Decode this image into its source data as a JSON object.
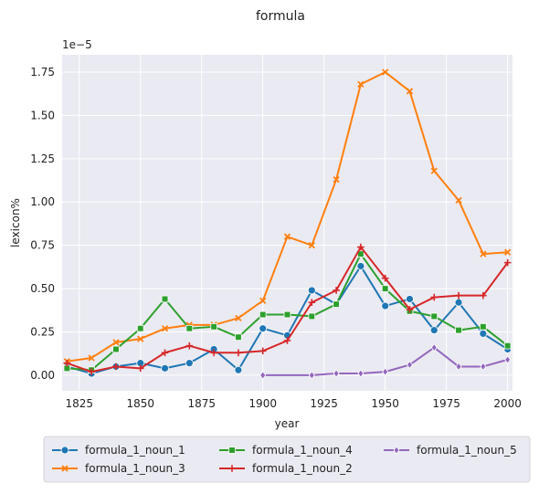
{
  "chart_data": {
    "type": "line",
    "title": "formula",
    "xlabel": "year",
    "ylabel": "lexicon%",
    "y_scale_label": "1e−5",
    "xlim": [
      1818,
      2002
    ],
    "ylim": [
      -0.09,
      1.85
    ],
    "y_multiplier": 1e-05,
    "x_ticks": [
      1825,
      1850,
      1875,
      1900,
      1925,
      1950,
      1975,
      2000
    ],
    "y_ticks": [
      0.0,
      0.25,
      0.5,
      0.75,
      1.0,
      1.25,
      1.5,
      1.75
    ],
    "y_tick_labels": [
      "0.00",
      "0.25",
      "0.50",
      "0.75",
      "1.00",
      "1.25",
      "1.50",
      "1.75"
    ],
    "grid": true,
    "legend_placement": "bottom, outside plot",
    "series": [
      {
        "name": "formula_1_noun_1",
        "color": "#1f77b4",
        "marker": "circle",
        "x": [
          1820,
          1830,
          1840,
          1850,
          1860,
          1870,
          1880,
          1890,
          1900,
          1910,
          1920,
          1930,
          1940,
          1950,
          1960,
          1970,
          1980,
          1990,
          2000
        ],
        "y": [
          0.05,
          0.01,
          0.05,
          0.07,
          0.04,
          0.07,
          0.15,
          0.03,
          0.27,
          0.23,
          0.49,
          0.41,
          0.63,
          0.4,
          0.44,
          0.26,
          0.42,
          0.24,
          0.15
        ]
      },
      {
        "name": "formula_1_noun_3",
        "color": "#ff7f0e",
        "marker": "x",
        "x": [
          1820,
          1830,
          1840,
          1850,
          1860,
          1870,
          1880,
          1890,
          1900,
          1910,
          1920,
          1930,
          1940,
          1950,
          1960,
          1970,
          1980,
          1990,
          2000
        ],
        "y": [
          0.08,
          0.1,
          0.19,
          0.21,
          0.27,
          0.29,
          0.29,
          0.33,
          0.43,
          0.8,
          0.75,
          1.13,
          1.68,
          1.75,
          1.64,
          1.18,
          1.01,
          0.7,
          0.71
        ]
      },
      {
        "name": "formula_1_noun_4",
        "color": "#2ca02c",
        "marker": "square",
        "x": [
          1820,
          1830,
          1840,
          1850,
          1860,
          1870,
          1880,
          1890,
          1900,
          1910,
          1920,
          1930,
          1940,
          1950,
          1960,
          1970,
          1980,
          1990,
          2000
        ],
        "y": [
          0.04,
          0.03,
          0.15,
          0.27,
          0.44,
          0.27,
          0.28,
          0.22,
          0.35,
          0.35,
          0.34,
          0.41,
          0.7,
          0.5,
          0.37,
          0.34,
          0.26,
          0.28,
          0.17
        ]
      },
      {
        "name": "formula_1_noun_2",
        "color": "#d62728",
        "marker": "plus",
        "x": [
          1820,
          1830,
          1840,
          1850,
          1860,
          1870,
          1880,
          1890,
          1900,
          1910,
          1920,
          1930,
          1940,
          1950,
          1960,
          1970,
          1980,
          1990,
          2000
        ],
        "y": [
          0.07,
          0.02,
          0.05,
          0.04,
          0.13,
          0.17,
          0.13,
          0.13,
          0.14,
          0.2,
          0.42,
          0.49,
          0.74,
          0.56,
          0.38,
          0.45,
          0.46,
          0.46,
          0.65
        ]
      },
      {
        "name": "formula_1_noun_5",
        "color": "#9467bd",
        "marker": "diamond",
        "x": [
          1900,
          1920,
          1930,
          1940,
          1950,
          1960,
          1970,
          1980,
          1990,
          2000
        ],
        "y": [
          0.0,
          0.0,
          0.01,
          0.01,
          0.02,
          0.06,
          0.16,
          0.05,
          0.05,
          0.09
        ]
      }
    ]
  },
  "legend": {
    "items": [
      {
        "series_index": 0
      },
      {
        "series_index": 1
      },
      {
        "series_index": 2
      },
      {
        "series_index": 3
      },
      {
        "series_index": 4
      }
    ]
  }
}
